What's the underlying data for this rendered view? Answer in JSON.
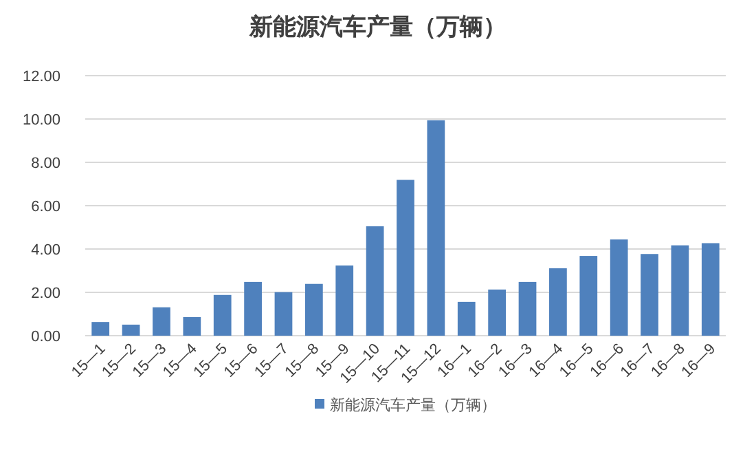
{
  "chart_data": {
    "type": "bar",
    "title": "新能源汽车产量（万辆）",
    "categories": [
      "15—1",
      "15—2",
      "15—3",
      "15—4",
      "15—5",
      "15—6",
      "15—7",
      "15—8",
      "15—9",
      "15—10",
      "15—11",
      "15—12",
      "16—1",
      "16—2",
      "16—3",
      "16—4",
      "16—5",
      "16—6",
      "16—7",
      "16—8",
      "16—9"
    ],
    "series": [
      {
        "name": "新能源汽车产量（万辆）",
        "color": "#4f81bd",
        "values": [
          0.63,
          0.51,
          1.31,
          0.86,
          1.88,
          2.48,
          2.01,
          2.39,
          3.24,
          5.05,
          7.19,
          9.94,
          1.56,
          2.13,
          2.48,
          3.11,
          3.68,
          4.44,
          3.77,
          4.17,
          4.27
        ]
      }
    ],
    "ylim": [
      0,
      12
    ],
    "yticks": [
      {
        "value": 0,
        "label": "0.00"
      },
      {
        "value": 2,
        "label": "2.00"
      },
      {
        "value": 4,
        "label": "4.00"
      },
      {
        "value": 6,
        "label": "6.00"
      },
      {
        "value": 8,
        "label": "8.00"
      },
      {
        "value": 10,
        "label": "10.00"
      },
      {
        "value": 12,
        "label": "12.00"
      }
    ],
    "grid": "y",
    "legend": "bottom"
  }
}
